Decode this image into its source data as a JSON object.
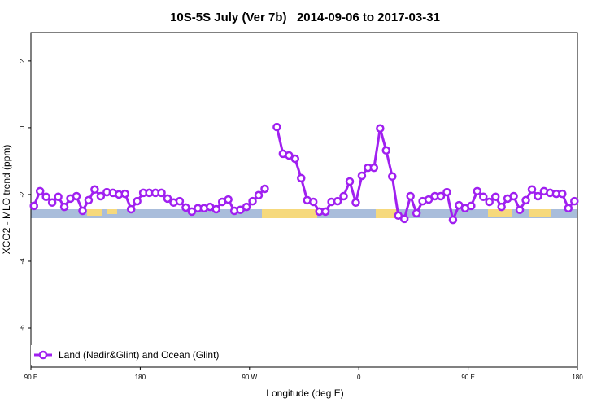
{
  "chart_data": {
    "type": "line",
    "title": "10S-5S July (Ver 7b)   2014-09-06 to 2017-03-31",
    "x_label": "Longitude (deg E)",
    "y_label": "XCO2 - MLO trend (ppm)",
    "xlim": [
      90,
      540
    ],
    "xticks": [
      {
        "value": 90,
        "label": "90 E"
      },
      180,
      {
        "value": 270,
        "label": "90 W"
      },
      {
        "value": 360,
        "label": "0"
      },
      {
        "value": 450,
        "label": "90 E"
      },
      {
        "value": 540,
        "label": "180"
      }
    ],
    "ylim": [
      -7.17,
      2.85
    ],
    "yticks": [
      2,
      0,
      -2,
      -4,
      -6
    ],
    "grid": false,
    "legend": "bottom-left",
    "x": [
      92.5,
      97.5,
      102.5,
      107.5,
      112.5,
      117.5,
      122.5,
      127.5,
      132.5,
      137.5,
      142.5,
      147.5,
      152.5,
      157.5,
      162.5,
      167.5,
      172.5,
      177.5,
      182.5,
      187.5,
      192.5,
      197.5,
      202.5,
      207.5,
      212.5,
      217.5,
      222.5,
      227.5,
      232.5,
      237.5,
      242.5,
      247.5,
      252.5,
      257.5,
      262.5,
      267.5,
      272.5,
      277.5,
      282.5,
      287.5,
      292.5,
      297.5,
      302.5,
      307.5,
      312.5,
      317.5,
      322.5,
      327.5,
      332.5,
      337.5,
      342.5,
      347.5,
      352.5,
      357.5,
      362.5,
      367.5,
      372.5,
      377.5,
      382.5,
      387.5,
      392.5,
      397.5,
      402.5,
      407.5,
      412.5,
      417.5,
      422.5,
      427.5,
      432.5,
      437.5,
      442.5,
      447.5,
      452.5,
      457.5,
      462.5,
      467.5,
      472.5,
      477.5,
      482.5,
      487.5,
      492.5,
      497.5,
      502.5,
      507.5,
      512.5,
      517.5,
      522.5,
      527.5,
      532.5,
      537.5
    ],
    "series": [
      {
        "name": "Land (Nadir&Glint) and Ocean (Glint)",
        "color": "#a020f0",
        "values": [
          -2.34,
          -1.9,
          -2.07,
          -2.24,
          -2.07,
          -2.37,
          -2.12,
          -2.05,
          -2.49,
          -2.17,
          -1.85,
          -2.05,
          -1.93,
          -1.95,
          -2.0,
          -1.98,
          -2.44,
          -2.2,
          -1.95,
          -1.95,
          -1.95,
          -1.95,
          -2.12,
          -2.24,
          -2.2,
          -2.39,
          -2.51,
          -2.41,
          -2.41,
          -2.37,
          -2.44,
          -2.22,
          -2.15,
          -2.49,
          -2.46,
          -2.37,
          -2.2,
          -2.02,
          -1.83,
          null,
          0.02,
          -0.78,
          -0.83,
          -0.93,
          -1.51,
          -2.17,
          -2.22,
          -2.51,
          -2.51,
          -2.22,
          -2.2,
          -2.05,
          -1.61,
          -2.24,
          -1.44,
          -1.2,
          -1.2,
          -0.02,
          -0.68,
          -1.46,
          -2.63,
          -2.73,
          -2.05,
          -2.56,
          -2.2,
          -2.15,
          -2.05,
          -2.05,
          -1.93,
          -2.76,
          -2.32,
          -2.41,
          -2.34,
          -1.9,
          -2.07,
          -2.22,
          -2.07,
          -2.37,
          -2.12,
          -2.05,
          -2.46,
          -2.17,
          -1.85,
          -2.05,
          -1.9,
          -1.95,
          -1.98,
          -1.98,
          -2.41,
          -2.2
        ]
      }
    ]
  }
}
